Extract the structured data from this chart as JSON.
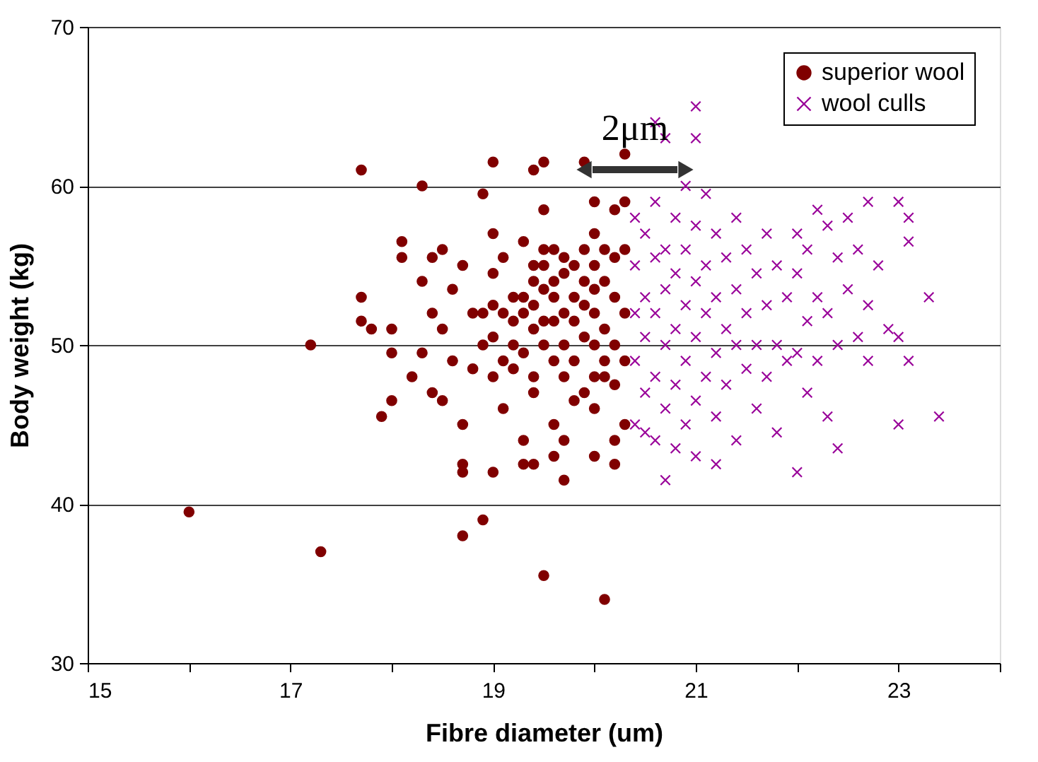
{
  "chart_data": {
    "type": "scatter",
    "xlabel": "Fibre diameter (um)",
    "ylabel": "Body weight (kg)",
    "xlim": [
      15,
      24
    ],
    "xticks": [
      15,
      {
        "value": 16,
        "label": null
      },
      17,
      {
        "value": 18,
        "label": null
      },
      19,
      {
        "value": 20,
        "label": null
      },
      21,
      {
        "value": 22,
        "label": null
      },
      23,
      {
        "value": 24,
        "label": null
      }
    ],
    "ylim": [
      30,
      70
    ],
    "yticks": [
      30,
      40,
      50,
      60,
      70
    ],
    "grid": "y",
    "legend": "top right",
    "annotations": [
      "2μm"
    ],
    "series": [
      {
        "name": "superior wool",
        "color": "#800000",
        "marker": "circle",
        "x": [
          16.0,
          17.3,
          17.2,
          17.7,
          18.3,
          17.7,
          17.7,
          17.8,
          18.0,
          18.0,
          17.9,
          18.0,
          18.1,
          18.1,
          18.2,
          18.3,
          18.3,
          18.4,
          18.4,
          18.5,
          18.5,
          18.4,
          18.5,
          18.6,
          18.6,
          18.7,
          18.7,
          18.7,
          18.7,
          18.7,
          18.8,
          18.8,
          18.9,
          18.9,
          18.9,
          18.9,
          19.0,
          19.0,
          19.0,
          19.0,
          19.0,
          19.0,
          19.0,
          19.1,
          19.1,
          19.1,
          19.1,
          19.2,
          19.2,
          19.2,
          19.2,
          19.3,
          19.3,
          19.3,
          19.3,
          19.3,
          19.3,
          19.4,
          19.4,
          19.4,
          19.4,
          19.4,
          19.4,
          19.4,
          19.4,
          19.5,
          19.5,
          19.5,
          19.5,
          19.5,
          19.5,
          19.5,
          19.5,
          19.6,
          19.6,
          19.6,
          19.6,
          19.6,
          19.6,
          19.6,
          19.7,
          19.7,
          19.7,
          19.7,
          19.7,
          19.7,
          19.7,
          19.8,
          19.8,
          19.8,
          19.8,
          19.8,
          19.9,
          19.9,
          19.9,
          19.9,
          19.9,
          19.9,
          20.0,
          20.0,
          20.0,
          20.0,
          20.0,
          20.0,
          20.0,
          20.0,
          20.0,
          20.1,
          20.1,
          20.1,
          20.1,
          20.1,
          20.1,
          20.2,
          20.2,
          20.2,
          20.2,
          20.2,
          20.2,
          20.2,
          20.3,
          20.3,
          20.3,
          20.3,
          20.3,
          20.3
        ],
        "values": [
          39.5,
          37,
          50,
          61,
          60,
          53,
          51.5,
          51,
          49.5,
          51,
          45.5,
          46.5,
          55.5,
          56.5,
          48,
          49.5,
          54,
          52,
          55.5,
          56,
          51,
          47,
          46.5,
          53.5,
          49,
          42.5,
          42,
          38,
          45,
          55,
          48.5,
          52,
          59.5,
          52,
          50,
          39,
          61.5,
          57,
          54.5,
          52.5,
          50.5,
          48,
          42,
          55.5,
          52,
          49,
          46,
          53,
          51.5,
          50,
          48.5,
          56.5,
          53,
          52,
          49.5,
          44,
          42.5,
          61,
          55,
          54,
          52.5,
          51,
          48,
          47,
          42.5,
          61.5,
          58.5,
          56,
          55,
          53.5,
          51.5,
          50,
          35.5,
          56,
          54,
          53,
          51.5,
          49,
          45,
          43,
          55.5,
          54.5,
          52,
          50,
          48,
          44,
          41.5,
          55,
          53,
          51.5,
          49,
          46.5,
          61.5,
          56,
          54,
          52.5,
          50.5,
          47,
          59,
          57,
          55,
          53.5,
          52,
          50,
          48,
          46,
          43,
          56,
          54,
          51,
          49,
          34,
          48,
          58.5,
          55.5,
          53,
          50,
          47.5,
          44,
          42.5,
          62,
          59,
          56,
          52,
          49,
          45
        ]
      },
      {
        "name": "wool culls",
        "color": "#990099",
        "marker": "cross",
        "x": [
          20.4,
          20.4,
          20.4,
          20.4,
          20.4,
          20.5,
          20.5,
          20.5,
          20.5,
          20.5,
          20.6,
          20.6,
          20.6,
          20.6,
          20.6,
          20.6,
          20.7,
          20.7,
          20.7,
          20.7,
          20.7,
          20.7,
          20.8,
          20.8,
          20.8,
          20.8,
          20.8,
          20.9,
          20.9,
          20.9,
          20.9,
          20.9,
          21.0,
          21.0,
          21.0,
          21.0,
          21.0,
          21.0,
          21.0,
          21.1,
          21.1,
          21.1,
          21.1,
          21.2,
          21.2,
          21.2,
          21.2,
          21.2,
          21.3,
          21.3,
          21.3,
          21.4,
          21.4,
          21.4,
          21.4,
          21.5,
          21.5,
          21.5,
          21.6,
          21.6,
          21.6,
          21.7,
          21.7,
          21.7,
          21.8,
          21.8,
          21.8,
          21.9,
          21.9,
          22.0,
          22.0,
          22.0,
          22.0,
          22.1,
          22.1,
          22.1,
          22.2,
          22.2,
          22.2,
          22.3,
          22.3,
          22.3,
          22.4,
          22.4,
          22.4,
          22.5,
          22.5,
          22.6,
          22.6,
          22.7,
          22.7,
          22.7,
          22.8,
          22.9,
          23.0,
          23.0,
          23.0,
          23.1,
          23.1,
          23.1,
          23.3,
          23.4
        ],
        "values": [
          58,
          55,
          52,
          49,
          45,
          57,
          53,
          50.5,
          47,
          44.5,
          64,
          59,
          55.5,
          52,
          48,
          44,
          63,
          56,
          53.5,
          50,
          46,
          41.5,
          58,
          54.5,
          51,
          47.5,
          43.5,
          60,
          56,
          52.5,
          49,
          45,
          65,
          63,
          57.5,
          54,
          50.5,
          46.5,
          43,
          59.5,
          55,
          52,
          48,
          57,
          53,
          49.5,
          45.5,
          42.5,
          55.5,
          51,
          47.5,
          58,
          53.5,
          50,
          44,
          56,
          52,
          48.5,
          54.5,
          50,
          46,
          57,
          52.5,
          48,
          55,
          50,
          44.5,
          53,
          49,
          57,
          54.5,
          49.5,
          42,
          56,
          51.5,
          47,
          58.5,
          53,
          49,
          57.5,
          52,
          45.5,
          55.5,
          50,
          43.5,
          58,
          53.5,
          56,
          50.5,
          59,
          52.5,
          49,
          55,
          51,
          59,
          50.5,
          45,
          58,
          49,
          56.5,
          53,
          45.5
        ]
      }
    ]
  }
}
